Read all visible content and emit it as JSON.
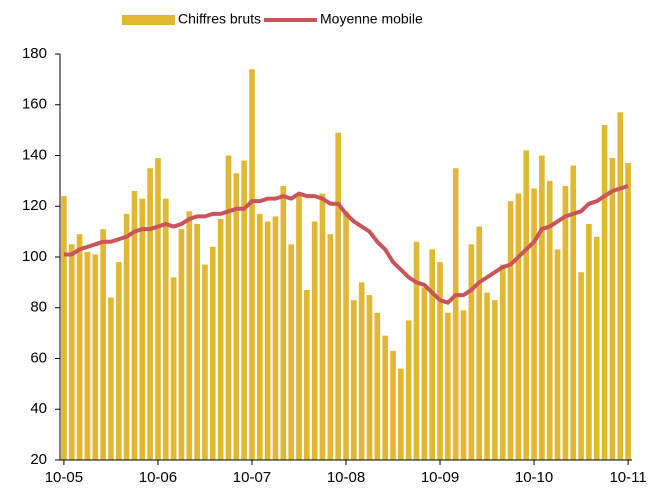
{
  "chart_data": {
    "type": "bar",
    "categories": [
      "10-05",
      null,
      null,
      null,
      null,
      null,
      null,
      null,
      null,
      null,
      null,
      null,
      "10-06",
      null,
      null,
      null,
      null,
      null,
      null,
      null,
      null,
      null,
      null,
      null,
      "10-07",
      null,
      null,
      null,
      null,
      null,
      null,
      null,
      null,
      null,
      null,
      null,
      "10-08",
      null,
      null,
      null,
      null,
      null,
      null,
      null,
      null,
      null,
      null,
      null,
      "10-09",
      null,
      null,
      null,
      null,
      null,
      null,
      null,
      null,
      null,
      null,
      null,
      "10-10",
      null,
      null,
      null,
      null,
      null,
      null,
      null,
      null,
      null,
      null,
      null,
      "10-11"
    ],
    "series": [
      {
        "name": "Chiffres bruts",
        "type": "bar",
        "color": "#e2b832",
        "values": [
          124,
          105,
          109,
          102,
          101,
          111,
          84,
          98,
          117,
          126,
          123,
          135,
          139,
          123,
          92,
          111,
          118,
          113,
          97,
          104,
          115,
          140,
          133,
          138,
          174,
          117,
          114,
          116,
          128,
          105,
          125,
          87,
          114,
          125,
          109,
          149,
          118,
          83,
          90,
          85,
          78,
          69,
          63,
          56,
          75,
          106,
          88,
          103,
          98,
          78,
          135,
          79,
          105,
          112,
          86,
          83,
          97,
          122,
          125,
          142,
          127,
          140,
          130,
          103,
          128,
          136,
          94,
          113,
          108,
          152,
          139,
          157,
          137
        ]
      },
      {
        "name": "Moyenne mobile",
        "type": "line",
        "color": "#c9545a",
        "values": [
          101,
          101,
          103,
          104,
          105,
          106,
          106,
          107,
          108,
          110,
          111,
          111,
          112,
          113,
          112,
          113,
          115,
          116,
          116,
          117,
          117,
          118,
          119,
          119,
          122,
          122,
          123,
          123,
          124,
          123,
          125,
          124,
          124,
          123,
          121,
          121,
          117,
          114,
          112,
          110,
          106,
          103,
          98,
          95,
          92,
          90,
          89,
          86,
          83,
          82,
          85,
          85,
          87,
          90,
          92,
          94,
          96,
          97,
          100,
          103,
          106,
          111,
          112,
          114,
          116,
          117,
          118,
          121,
          122,
          124,
          126,
          127,
          128
        ]
      }
    ],
    "ylim": [
      20,
      180
    ],
    "yticks": [
      20,
      40,
      60,
      80,
      100,
      120,
      140,
      160,
      180
    ],
    "grid": false
  }
}
